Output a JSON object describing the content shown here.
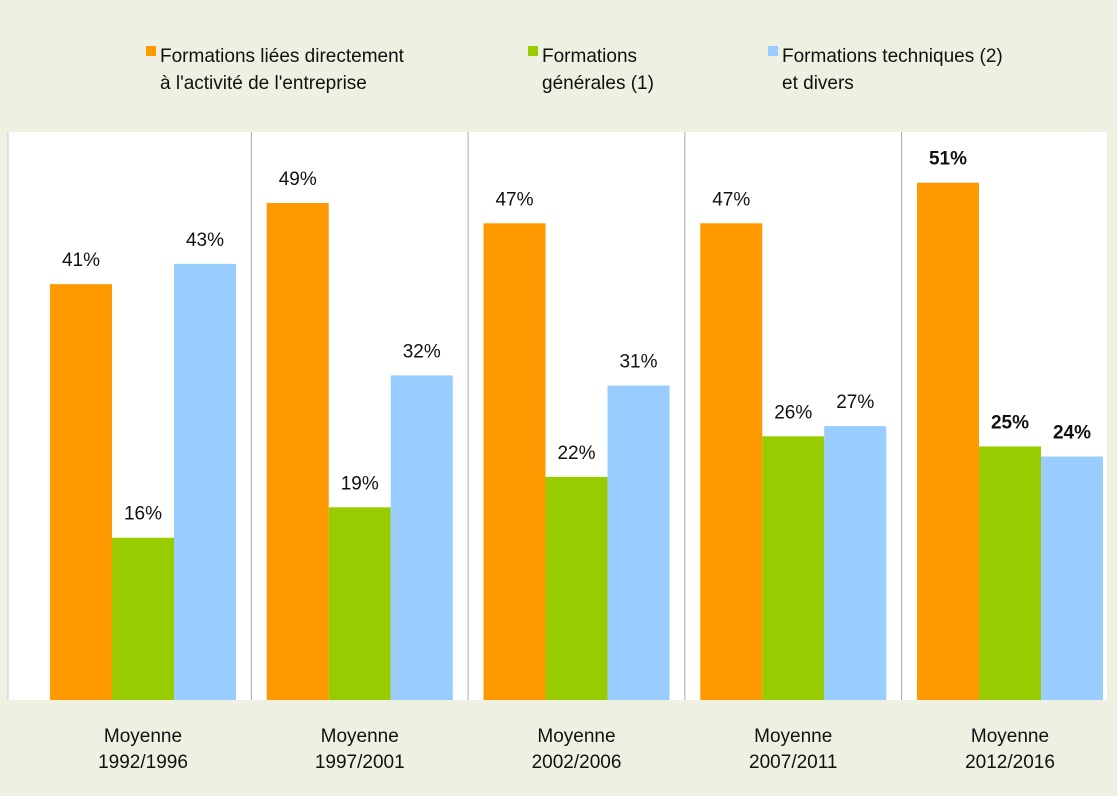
{
  "chart_data": {
    "type": "bar",
    "categories": [
      "Moyenne\n1992/1996",
      "Moyenne\n1997/2001",
      "Moyenne\n2002/2006",
      "Moyenne\n2007/2011",
      "Moyenne\n2012/2016"
    ],
    "series": [
      {
        "name": "Formations liées directement\nà l'activité de l'entreprise",
        "color": "#ff9900",
        "values": [
          41,
          49,
          47,
          47,
          51
        ],
        "value_labels": [
          "41%",
          "49%",
          "47%",
          "47%",
          "51%"
        ]
      },
      {
        "name": "Formations\ngénérales (1)",
        "color": "#99cc00",
        "values": [
          16,
          19,
          22,
          26,
          25
        ],
        "value_labels": [
          "16%",
          "19%",
          "22%",
          "26%",
          "25%"
        ]
      },
      {
        "name": "Formations techniques (2)\net divers",
        "color": "#99ccff",
        "values": [
          43,
          32,
          31,
          27,
          24
        ],
        "value_labels": [
          "43%",
          "32%",
          "31%",
          "27%",
          "24%"
        ]
      }
    ],
    "ylim": [
      0,
      56
    ],
    "bold_category_index": 4
  }
}
